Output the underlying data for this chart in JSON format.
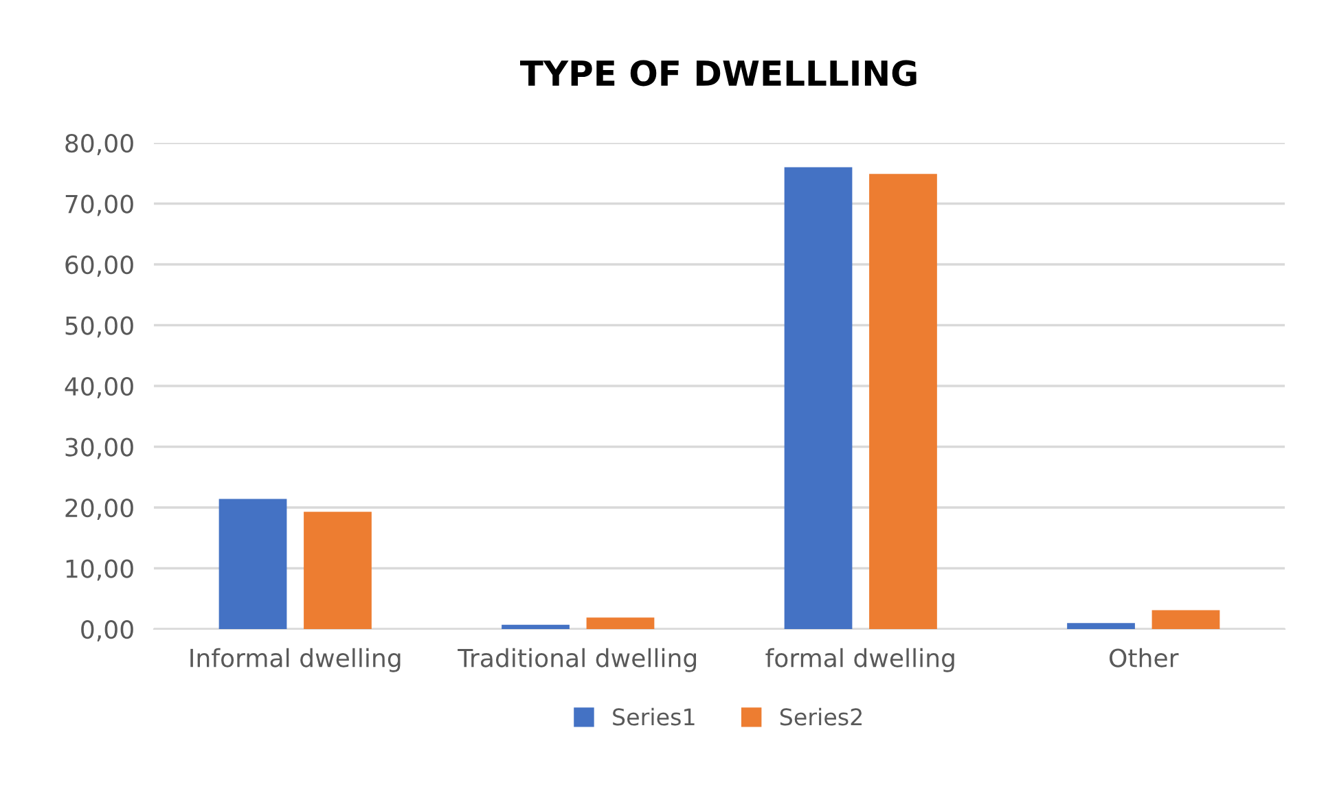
{
  "chart_data": {
    "type": "bar",
    "title": "TYPE OF DWELLLING",
    "categories": [
      "Informal dwelling",
      "Traditional dwelling",
      "formal dwelling",
      "Other"
    ],
    "series": [
      {
        "name": "Series1",
        "color": "#4472c4",
        "values": [
          21.4,
          0.7,
          76.0,
          1.0
        ]
      },
      {
        "name": "Series2",
        "color": "#ed7d31",
        "values": [
          19.3,
          1.9,
          74.9,
          3.1
        ]
      }
    ],
    "ylim": [
      0,
      80
    ],
    "yticks": [
      {
        "value": 0,
        "label": "0,00"
      },
      {
        "value": 10,
        "label": "10,00"
      },
      {
        "value": 20,
        "label": "20,00"
      },
      {
        "value": 30,
        "label": "30,00"
      },
      {
        "value": 40,
        "label": "40,00"
      },
      {
        "value": 50,
        "label": "50,00"
      },
      {
        "value": 60,
        "label": "60,00"
      },
      {
        "value": 70,
        "label": "70,00"
      },
      {
        "value": 80,
        "label": "80,00"
      }
    ],
    "grid": "y",
    "legend": "bottom"
  }
}
